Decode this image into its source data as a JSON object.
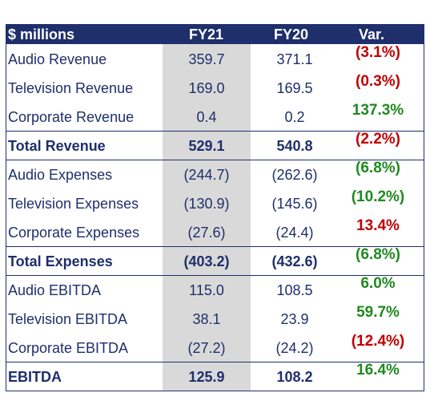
{
  "header": {
    "label": "$ millions",
    "col1": "FY21",
    "col2": "FY20",
    "col3": "Var."
  },
  "rows": [
    {
      "label": "Audio Revenue",
      "fy21": "359.7",
      "fy20": "371.1",
      "var": "(3.1%)",
      "var_color": "red"
    },
    {
      "label": "Television Revenue",
      "fy21": "169.0",
      "fy20": "169.5",
      "var": "(0.3%)",
      "var_color": "red"
    },
    {
      "label": "Corporate Revenue",
      "fy21": "0.4",
      "fy20": "0.2",
      "var": "137.3%",
      "var_color": "green"
    },
    {
      "label": "Total Revenue",
      "fy21": "529.1",
      "fy20": "540.8",
      "var": "(2.2%)",
      "var_color": "red",
      "total": true
    },
    {
      "label": "Audio Expenses",
      "fy21": "(244.7)",
      "fy20": "(262.6)",
      "var": "(6.8%)",
      "var_color": "green"
    },
    {
      "label": "Television Expenses",
      "fy21": "(130.9)",
      "fy20": "(145.6)",
      "var": "(10.2%)",
      "var_color": "green"
    },
    {
      "label": "Corporate Expenses",
      "fy21": "(27.6)",
      "fy20": "(24.4)",
      "var": "13.4%",
      "var_color": "red"
    },
    {
      "label": "Total Expenses",
      "fy21": "(403.2)",
      "fy20": "(432.6)",
      "var": "(6.8%)",
      "var_color": "green",
      "total": true
    },
    {
      "label": "Audio EBITDA",
      "fy21": "115.0",
      "fy20": "108.5",
      "var": "6.0%",
      "var_color": "green"
    },
    {
      "label": "Television EBITDA",
      "fy21": "38.1",
      "fy20": "23.9",
      "var": "59.7%",
      "var_color": "green"
    },
    {
      "label": "Corporate EBITDA",
      "fy21": "(27.2)",
      "fy20": "(24.2)",
      "var": "(12.4%)",
      "var_color": "red"
    },
    {
      "label": "EBITDA",
      "fy21": "125.9",
      "fy20": "108.2",
      "var": "16.4%",
      "var_color": "green",
      "total": true
    }
  ],
  "colors": {
    "navy": "#1f2f6b",
    "red": "#c00000",
    "green": "#1f8a1f",
    "fy21_shade": "#d9d9d9"
  }
}
